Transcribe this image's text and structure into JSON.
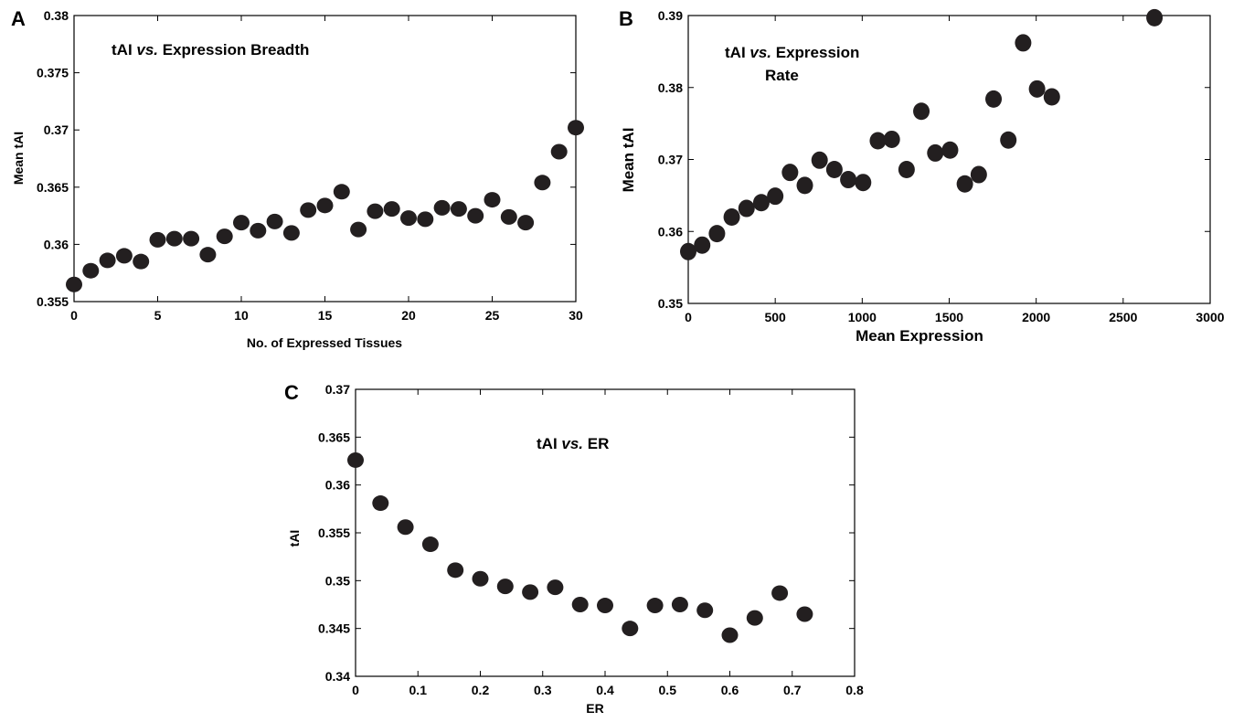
{
  "chart_data": [
    {
      "panel": "A",
      "type": "scatter",
      "title": [
        "tAI ",
        "vs.",
        " Expression Breadth"
      ],
      "xlabel": "No. of Expressed Tissues",
      "ylabel": "Mean tAI",
      "xlim": [
        0,
        30
      ],
      "ylim": [
        0.355,
        0.38
      ],
      "xticks": [
        0,
        5,
        10,
        15,
        20,
        25,
        30
      ],
      "xtick_labels": [
        "0",
        "5",
        "10",
        "15",
        "20",
        "25",
        "30"
      ],
      "yticks": [
        0.355,
        0.36,
        0.365,
        0.37,
        0.375,
        0.38
      ],
      "ytick_labels": [
        "0.355",
        "0.36",
        "0.365",
        "0.37",
        "0.375",
        "0.38"
      ],
      "x": [
        0,
        1,
        2,
        3,
        4,
        5,
        6,
        7,
        8,
        9,
        10,
        11,
        12,
        13,
        14,
        15,
        16,
        17,
        18,
        19,
        20,
        21,
        22,
        23,
        24,
        25,
        26,
        27,
        28,
        29,
        30
      ],
      "y": [
        0.3565,
        0.3577,
        0.3586,
        0.359,
        0.3585,
        0.3604,
        0.3605,
        0.3605,
        0.3591,
        0.3607,
        0.3619,
        0.3612,
        0.362,
        0.361,
        0.363,
        0.3634,
        0.3646,
        0.3613,
        0.3629,
        0.3631,
        0.3623,
        0.3622,
        0.3632,
        0.3631,
        0.3625,
        0.3639,
        0.3624,
        0.3619,
        0.3654,
        0.3681,
        0.3702
      ]
    },
    {
      "panel": "B",
      "type": "scatter",
      "title": [
        "tAI ",
        "vs.",
        " Expression",
        "Rate"
      ],
      "xlabel": "Mean Expression",
      "ylabel": "Mean tAI",
      "xlim": [
        0,
        3000
      ],
      "ylim": [
        0.35,
        0.39
      ],
      "xticks": [
        0,
        500,
        1000,
        1500,
        2000,
        2500,
        3000
      ],
      "xtick_labels": [
        "0",
        "500",
        "1000",
        "1500",
        "2000",
        "2500",
        "3000"
      ],
      "yticks": [
        0.35,
        0.36,
        0.37,
        0.38,
        0.39
      ],
      "ytick_labels": [
        "0.35",
        "0.36",
        "0.37",
        "0.38",
        "0.39"
      ],
      "x": [
        0,
        80,
        165,
        250,
        335,
        420,
        500,
        585,
        670,
        755,
        840,
        920,
        1005,
        1090,
        1170,
        1255,
        1340,
        1420,
        1505,
        1590,
        1670,
        1755,
        1840,
        1925,
        2005,
        2090,
        2680
      ],
      "y": [
        0.3572,
        0.3581,
        0.3597,
        0.362,
        0.3632,
        0.364,
        0.3649,
        0.3682,
        0.3664,
        0.3699,
        0.3686,
        0.3672,
        0.3668,
        0.3726,
        0.3728,
        0.3686,
        0.3767,
        0.3709,
        0.3713,
        0.3666,
        0.3679,
        0.3784,
        0.3727,
        0.3862,
        0.3798,
        0.3787,
        0.3897
      ]
    },
    {
      "panel": "C",
      "type": "scatter",
      "title": [
        "tAI ",
        "vs.",
        " ER"
      ],
      "xlabel": "ER",
      "ylabel": "tAI",
      "xlim": [
        0,
        0.8
      ],
      "ylim": [
        0.34,
        0.37
      ],
      "xticks": [
        0,
        0.1,
        0.2,
        0.3,
        0.4,
        0.5,
        0.6,
        0.7,
        0.8
      ],
      "xtick_labels": [
        "0",
        "0.1",
        "0.2",
        "0.3",
        "0.4",
        "0.5",
        "0.6",
        "0.7",
        "0.8"
      ],
      "yticks": [
        0.34,
        0.345,
        0.35,
        0.355,
        0.36,
        0.365,
        0.37
      ],
      "ytick_labels": [
        "0.34",
        "0.345",
        "0.35",
        "0.355",
        "0.36",
        "0.365",
        "0.37"
      ],
      "x": [
        0,
        0.04,
        0.08,
        0.12,
        0.16,
        0.2,
        0.24,
        0.28,
        0.32,
        0.36,
        0.4,
        0.44,
        0.48,
        0.52,
        0.56,
        0.6,
        0.64,
        0.68,
        0.72
      ],
      "y": [
        0.3626,
        0.3581,
        0.3556,
        0.3538,
        0.3511,
        0.3502,
        0.3494,
        0.3488,
        0.3493,
        0.3475,
        0.3474,
        0.345,
        0.3474,
        0.3475,
        0.3469,
        0.3443,
        0.3461,
        0.3487,
        0.3465
      ]
    }
  ],
  "colors": {
    "marker": "#231f20",
    "frame": "#000000"
  }
}
